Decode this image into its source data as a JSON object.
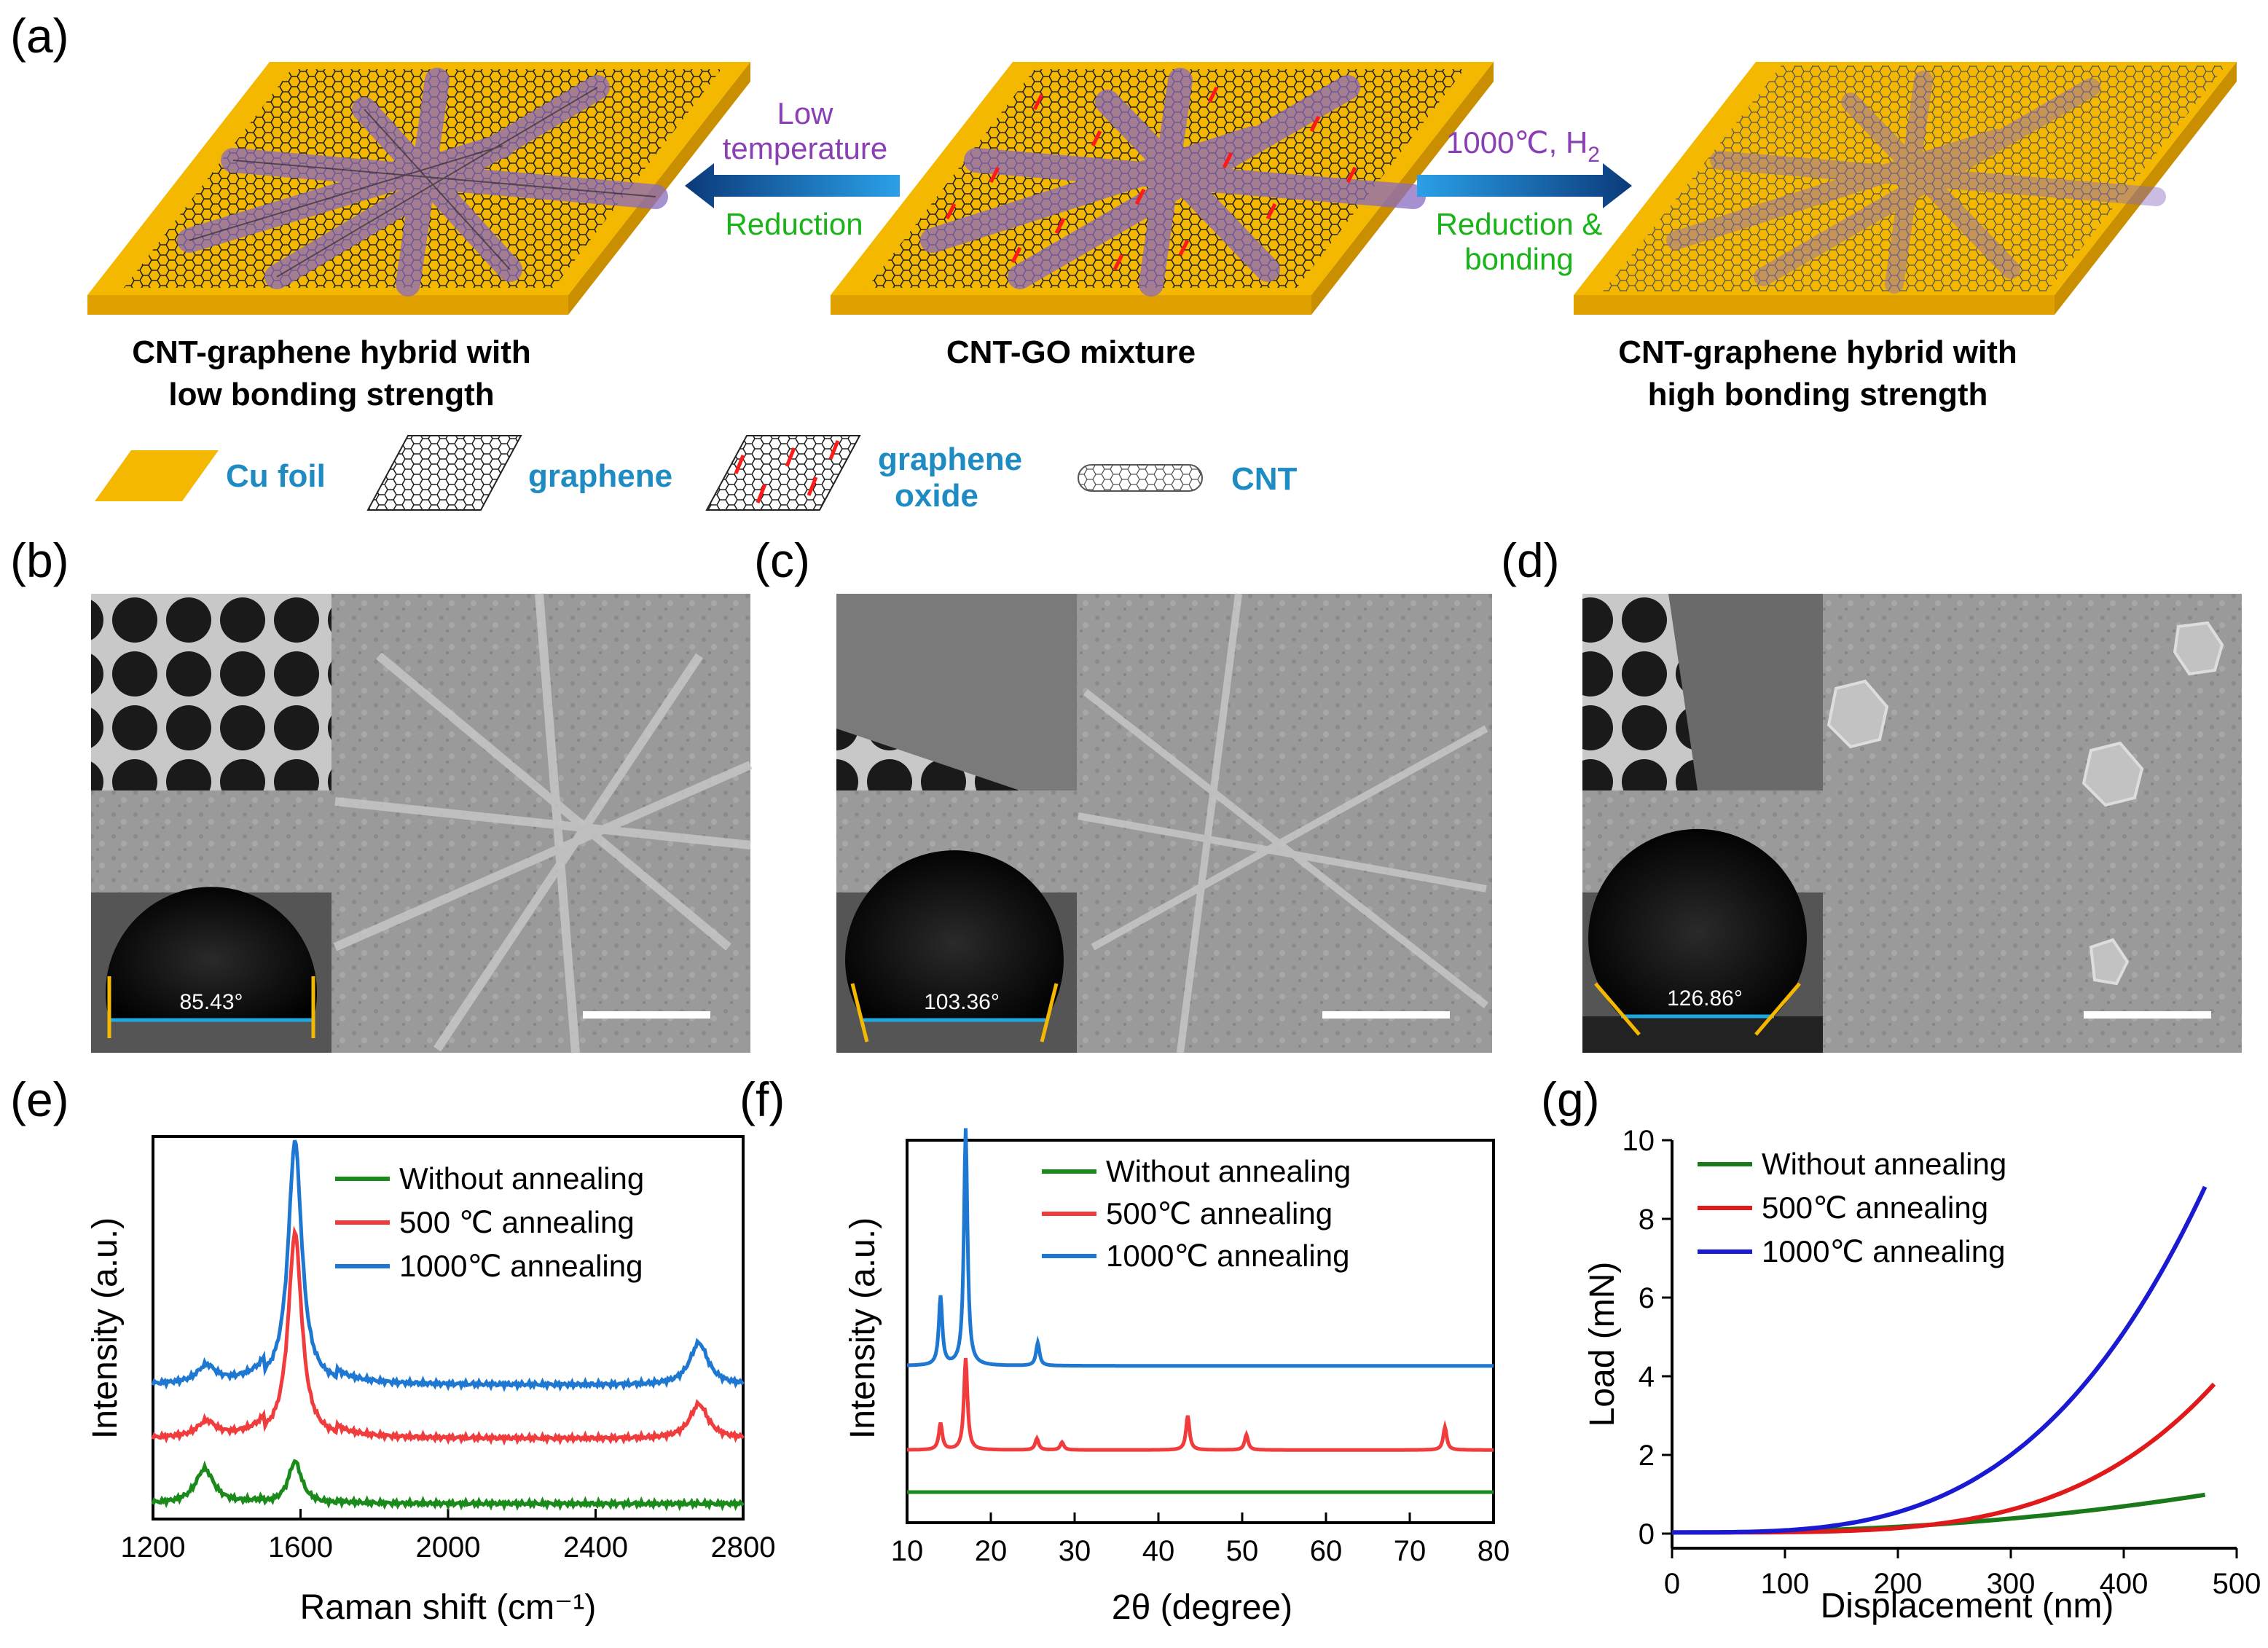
{
  "panel_labels": {
    "a": "(a)",
    "b": "(b)",
    "c": "(c)",
    "d": "(d)",
    "e": "(e)",
    "f": "(f)",
    "g": "(g)"
  },
  "schematic": {
    "left_caption_1": "CNT-graphene hybrid with",
    "left_caption_2": "low bonding strength",
    "center_caption": "CNT-GO mixture",
    "right_caption_1": "CNT-graphene hybrid with",
    "right_caption_2": "high bonding strength",
    "left_arrow_line1": "Low",
    "left_arrow_line2": "temperature",
    "left_arrow_line3": "Reduction",
    "right_arrow_line1": "1000℃, H",
    "right_arrow_sub": "2",
    "right_arrow_line2": "Reduction &",
    "right_arrow_line3": "bonding",
    "colors": {
      "cu": "#f5b800",
      "purple": "#8a3fb5",
      "green": "#18b418",
      "blue": "#1e8bc3"
    }
  },
  "legend_row": {
    "cu_foil": "Cu foil",
    "graphene": "graphene",
    "graphene_oxide_1": "graphene",
    "graphene_oxide_2": "oxide",
    "cnt": "CNT"
  },
  "sem": {
    "b_angle": "85.43°",
    "c_angle": "103.36°",
    "d_angle": "126.86°"
  },
  "chart_data": [
    {
      "panel": "e",
      "type": "line",
      "title": "",
      "xlabel": "Raman shift (cm⁻¹)",
      "ylabel": "Intensity (a.u.)",
      "xlim": [
        1200,
        2800
      ],
      "xticks": [
        "1200",
        "1600",
        "2000",
        "2400",
        "2800"
      ],
      "legend": [
        "Without annealing",
        "500 ℃ annealing",
        "1000℃ annealing"
      ],
      "series": [
        {
          "name": "Without annealing",
          "color": "#1a8a1a",
          "offset": 0.0,
          "peaks": [
            [
              1340,
              0.09
            ],
            [
              1585,
              0.11
            ]
          ]
        },
        {
          "name": "500 ℃ annealing",
          "color": "#f03c3c",
          "offset": 0.17,
          "peaks": [
            [
              1345,
              0.04
            ],
            [
              1585,
              0.54
            ],
            [
              2680,
              0.09
            ]
          ]
        },
        {
          "name": "1000℃ annealing",
          "color": "#1e78d2",
          "offset": 0.31,
          "peaks": [
            [
              1345,
              0.045
            ],
            [
              1585,
              0.64
            ],
            [
              2680,
              0.11
            ]
          ]
        }
      ]
    },
    {
      "panel": "f",
      "type": "line",
      "title": "",
      "xlabel": "2θ (degree)",
      "ylabel": "Intensity (a.u.)",
      "xlim": [
        10,
        80
      ],
      "xticks": [
        "10",
        "20",
        "30",
        "40",
        "50",
        "60",
        "70",
        "80"
      ],
      "legend": [
        "Without annealing",
        "500℃ annealing",
        "1000℃ annealing"
      ],
      "series": [
        {
          "name": "Without annealing",
          "color": "#1a8a1a",
          "offset": 0.0,
          "peaks": []
        },
        {
          "name": "500℃ annealing",
          "color": "#f03c3c",
          "offset": 0.11,
          "peaks": [
            [
              14,
              0.07
            ],
            [
              17,
              0.24
            ],
            [
              25.5,
              0.03
            ],
            [
              28.5,
              0.02
            ],
            [
              43.5,
              0.09
            ],
            [
              50.5,
              0.04
            ],
            [
              74.2,
              0.06
            ]
          ]
        },
        {
          "name": "1000℃ annealing",
          "color": "#1e78d2",
          "offset": 0.33,
          "peaks": [
            [
              14,
              0.18
            ],
            [
              17,
              0.62
            ],
            [
              25.6,
              0.06
            ]
          ]
        }
      ]
    },
    {
      "panel": "g",
      "type": "line",
      "title": "",
      "xlabel": "Displacement (nm)",
      "ylabel": "Load (mN)",
      "xlim": [
        0,
        500
      ],
      "ylim": [
        0,
        10
      ],
      "xticks": [
        "0",
        "100",
        "200",
        "300",
        "400",
        "500"
      ],
      "yticks": [
        "0",
        "2",
        "4",
        "6",
        "8",
        "10"
      ],
      "legend": [
        "Without annealing",
        "500℃ annealing",
        "1000℃ annealing"
      ],
      "series": [
        {
          "name": "Without annealing",
          "color": "#1a7a1a",
          "x_end": 475,
          "y_end": 1.0,
          "power": 2.2
        },
        {
          "name": "500℃ annealing",
          "color": "#e01a1a",
          "x_end": 480,
          "y_end": 3.8,
          "power": 4.0
        },
        {
          "name": "1000℃ annealing",
          "color": "#1a1ad2",
          "x_end": 475,
          "y_end": 9.0,
          "power": 3.3
        }
      ]
    }
  ]
}
